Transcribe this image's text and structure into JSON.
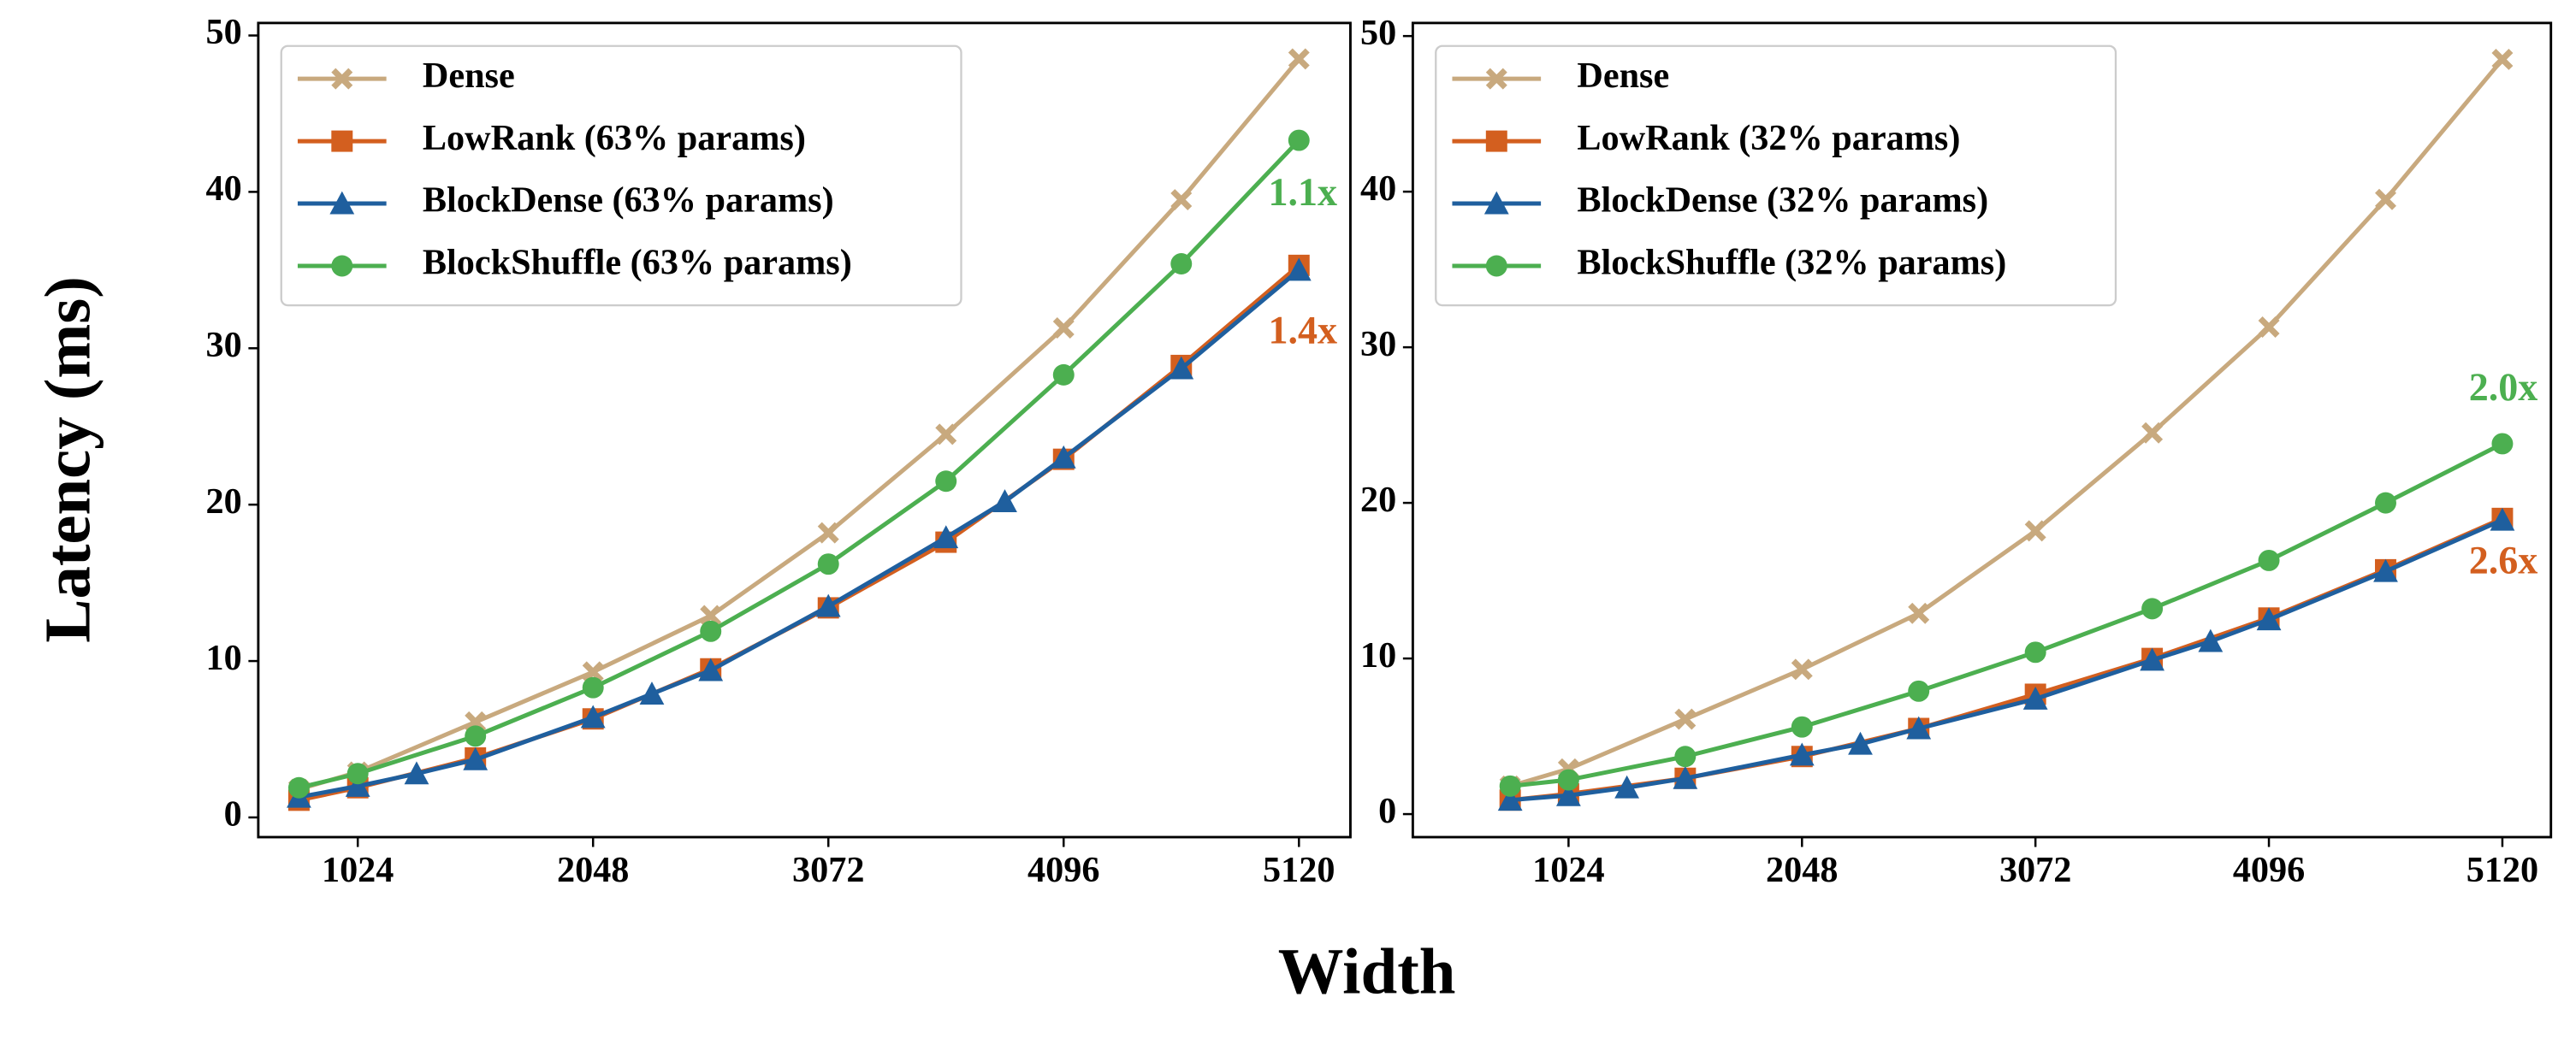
{
  "ylabel": "Latency (ms)",
  "xlabel": "Width",
  "chart_data": [
    {
      "type": "line",
      "xlim": [
        591,
        5344
      ],
      "ylim": [
        -1.26,
        50.8
      ],
      "xticks": [
        1024,
        2048,
        3072,
        4096,
        5120
      ],
      "yticks": [
        0,
        10,
        20,
        30,
        40,
        50
      ],
      "legend": "upper left",
      "series": [
        {
          "name": "Dense",
          "color": "#c8a97e",
          "marker": "X",
          "x": [
            768,
            1024,
            1536,
            2048,
            2560,
            3072,
            3584,
            4096,
            4608,
            5120
          ],
          "values": [
            1.8,
            2.9,
            6.1,
            9.3,
            12.9,
            18.2,
            24.5,
            31.3,
            39.5,
            48.5
          ]
        },
        {
          "name": "LowRank (63% params)",
          "color": "#d35f1f",
          "marker": "s",
          "x": [
            768,
            1024,
            1536,
            2048,
            2560,
            3072,
            3584,
            4096,
            4608,
            5120
          ],
          "values": [
            1.1,
            1.9,
            3.8,
            6.3,
            9.5,
            13.4,
            17.6,
            22.9,
            28.9,
            35.3
          ]
        },
        {
          "name": "BlockDense (63% params)",
          "color": "#1f5f9e",
          "marker": "^",
          "x": [
            768,
            1024,
            1280,
            1536,
            2048,
            2304,
            2560,
            3072,
            3584,
            3840,
            4096,
            4608,
            5120
          ],
          "values": [
            1.3,
            2.0,
            2.8,
            3.7,
            6.4,
            7.9,
            9.4,
            13.5,
            17.9,
            20.2,
            23.0,
            28.7,
            35.0
          ]
        },
        {
          "name": "BlockShuffle (63% params)",
          "color": "#4caf50",
          "marker": "o",
          "x": [
            768,
            1024,
            1536,
            2048,
            2560,
            3072,
            3584,
            4096,
            4608,
            5120
          ],
          "values": [
            1.9,
            2.8,
            5.2,
            8.3,
            11.9,
            16.2,
            21.5,
            28.3,
            35.4,
            43.3
          ]
        }
      ],
      "annotations": [
        {
          "text": "1.1x",
          "color": "#4caf50"
        },
        {
          "text": "1.4x",
          "color": "#d35f1f"
        }
      ]
    },
    {
      "type": "line",
      "xlim": [
        341,
        5333
      ],
      "ylim": [
        -1.48,
        50.84
      ],
      "xticks": [
        1024,
        2048,
        3072,
        4096,
        5120
      ],
      "yticks": [
        0,
        10,
        20,
        30,
        40,
        50
      ],
      "legend": "upper left",
      "series": [
        {
          "name": "Dense",
          "color": "#c8a97e",
          "marker": "X",
          "x": [
            768,
            1024,
            1536,
            2048,
            2560,
            3072,
            3584,
            4096,
            4608,
            5120
          ],
          "values": [
            1.8,
            2.9,
            6.1,
            9.3,
            12.9,
            18.2,
            24.5,
            31.3,
            39.5,
            48.5
          ]
        },
        {
          "name": "LowRank (32% params)",
          "color": "#d35f1f",
          "marker": "s",
          "x": [
            768,
            1024,
            1536,
            2048,
            2560,
            3072,
            3584,
            4096,
            4608,
            5120
          ],
          "values": [
            0.9,
            1.3,
            2.3,
            3.7,
            5.5,
            7.7,
            10.0,
            12.6,
            15.7,
            19.0
          ]
        },
        {
          "name": "BlockDense (32% params)",
          "color": "#1f5f9e",
          "marker": "^",
          "x": [
            768,
            1024,
            1280,
            1536,
            2048,
            2304,
            2560,
            3072,
            3584,
            3840,
            4096,
            4608,
            5120
          ],
          "values": [
            0.9,
            1.2,
            1.7,
            2.3,
            3.8,
            4.5,
            5.5,
            7.4,
            9.9,
            11.1,
            12.5,
            15.6,
            18.9
          ]
        },
        {
          "name": "BlockShuffle (32% params)",
          "color": "#4caf50",
          "marker": "o",
          "x": [
            768,
            1024,
            1536,
            2048,
            2560,
            3072,
            3584,
            4096,
            4608,
            5120
          ],
          "values": [
            1.8,
            2.2,
            3.7,
            5.6,
            7.9,
            10.4,
            13.2,
            16.3,
            20.0,
            23.8
          ]
        }
      ],
      "annotations": [
        {
          "text": "2.0x",
          "color": "#4caf50"
        },
        {
          "text": "2.6x",
          "color": "#d35f1f"
        }
      ]
    }
  ]
}
